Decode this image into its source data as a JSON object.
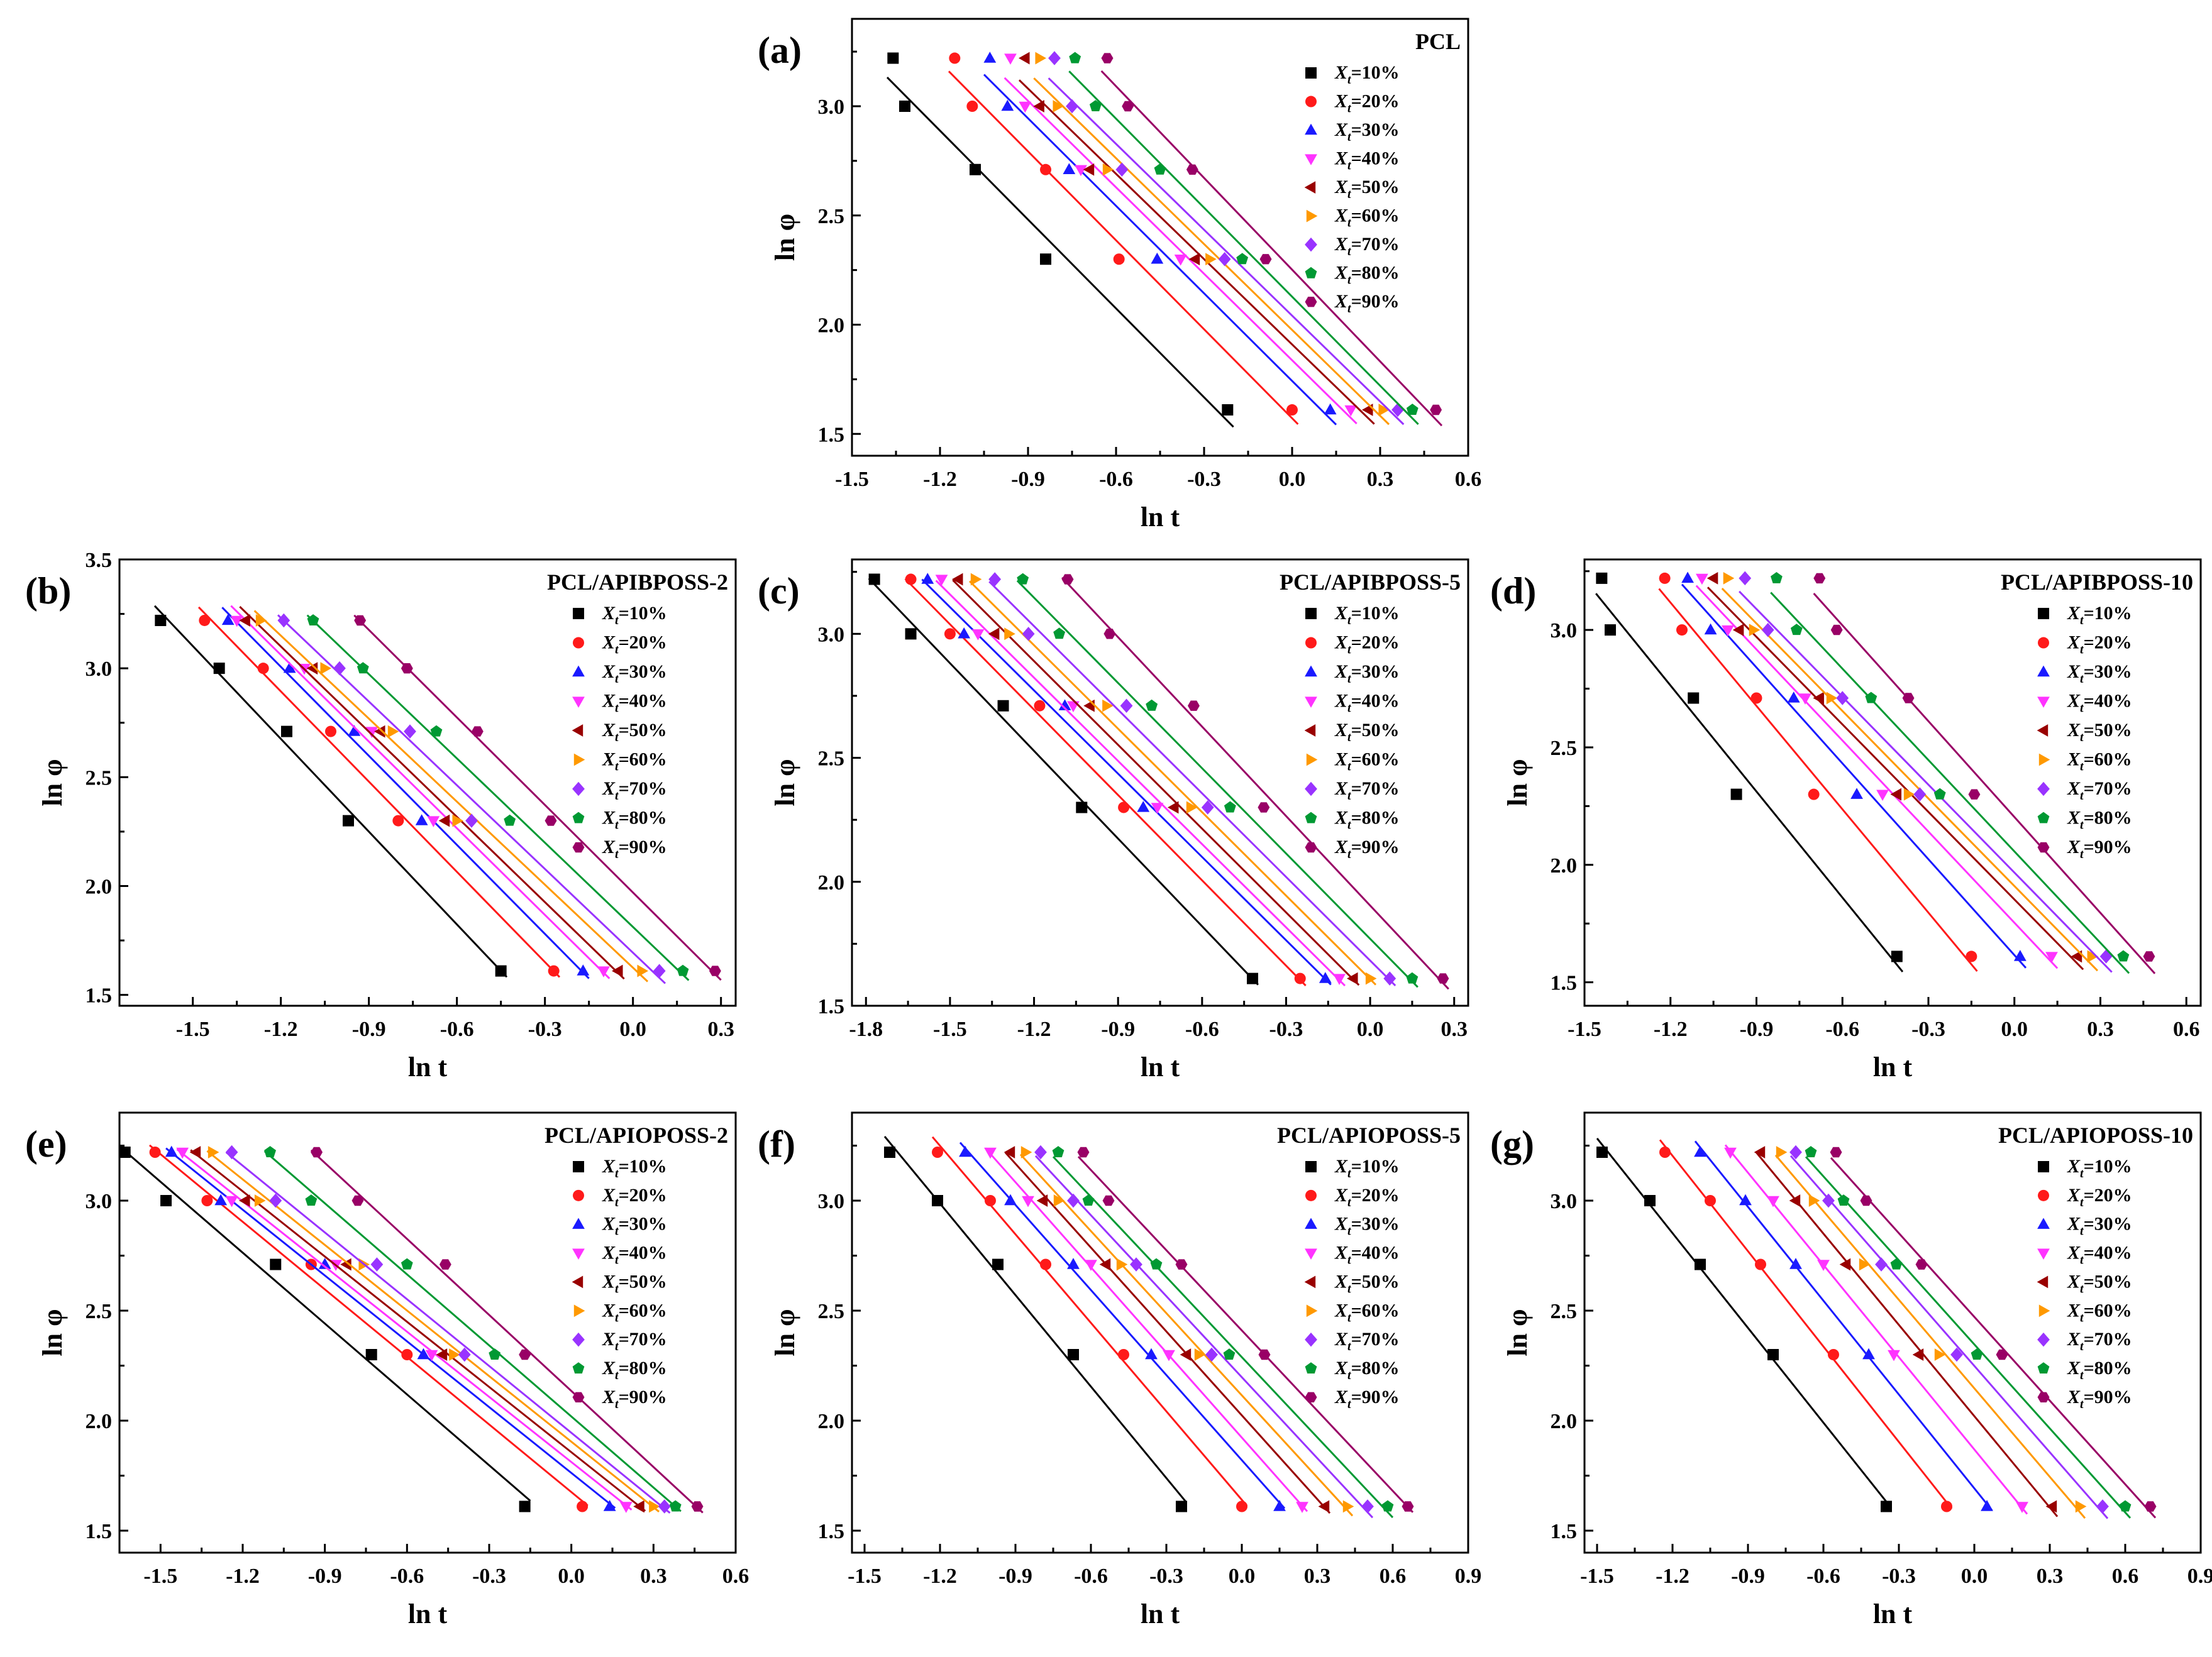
{
  "chart_data": [
    {
      "id": "a",
      "type": "scatter",
      "panel_label": "(a)",
      "title": "PCL",
      "xlabel": "ln t",
      "ylabel": "ln φ",
      "xlim": [
        -1.5,
        0.6
      ],
      "ylim": [
        1.4,
        3.4
      ],
      "xticks": [
        "-1.5",
        "-1.2",
        "-0.9",
        "-0.6",
        "-0.3",
        "0.0",
        "0.3",
        "0.6"
      ],
      "yticks": [
        "1.5",
        "2.0",
        "2.5",
        "3.0"
      ],
      "y": [
        3.22,
        3.0,
        2.71,
        2.3,
        1.61
      ],
      "series": [
        {
          "name": "Xt=10%",
          "x": [
            -1.36,
            -1.32,
            -1.08,
            -0.84,
            -0.22
          ]
        },
        {
          "name": "Xt=20%",
          "x": [
            -1.15,
            -1.09,
            -0.84,
            -0.59,
            0.0
          ]
        },
        {
          "name": "Xt=30%",
          "x": [
            -1.03,
            -0.97,
            -0.76,
            -0.46,
            0.13
          ]
        },
        {
          "name": "Xt=40%",
          "x": [
            -0.96,
            -0.91,
            -0.72,
            -0.38,
            0.2
          ]
        },
        {
          "name": "Xt=50%",
          "x": [
            -0.91,
            -0.86,
            -0.69,
            -0.33,
            0.26
          ]
        },
        {
          "name": "Xt=60%",
          "x": [
            -0.86,
            -0.8,
            -0.63,
            -0.28,
            0.31
          ]
        },
        {
          "name": "Xt=70%",
          "x": [
            -0.81,
            -0.75,
            -0.58,
            -0.23,
            0.36
          ]
        },
        {
          "name": "Xt=80%",
          "x": [
            -0.74,
            -0.67,
            -0.45,
            -0.17,
            0.41
          ]
        },
        {
          "name": "Xt=90%",
          "x": [
            -0.63,
            -0.56,
            -0.34,
            -0.09,
            0.49
          ]
        }
      ]
    },
    {
      "id": "b",
      "type": "scatter",
      "panel_label": "(b)",
      "title": "PCL/APIBPOSS-2",
      "xlabel": "ln t",
      "ylabel": "ln φ",
      "xlim": [
        -1.75,
        0.35
      ],
      "ylim": [
        1.45,
        3.5
      ],
      "xticks": [
        "-1.5",
        "-1.2",
        "-0.9",
        "-0.6",
        "-0.3",
        "0.0",
        "0.3"
      ],
      "yticks": [
        "1.5",
        "2.0",
        "2.5",
        "3.0",
        "3.5"
      ],
      "y": [
        3.22,
        3.0,
        2.71,
        2.3,
        1.61
      ],
      "series": [
        {
          "name": "Xt=10%",
          "x": [
            -1.61,
            -1.41,
            -1.18,
            -0.97,
            -0.45
          ]
        },
        {
          "name": "Xt=20%",
          "x": [
            -1.46,
            -1.26,
            -1.03,
            -0.8,
            -0.27
          ]
        },
        {
          "name": "Xt=30%",
          "x": [
            -1.38,
            -1.17,
            -0.95,
            -0.72,
            -0.17
          ]
        },
        {
          "name": "Xt=40%",
          "x": [
            -1.35,
            -1.12,
            -0.89,
            -0.68,
            -0.1
          ]
        },
        {
          "name": "Xt=50%",
          "x": [
            -1.32,
            -1.09,
            -0.86,
            -0.64,
            -0.05
          ]
        },
        {
          "name": "Xt=60%",
          "x": [
            -1.27,
            -1.05,
            -0.82,
            -0.6,
            0.03
          ]
        },
        {
          "name": "Xt=70%",
          "x": [
            -1.19,
            -1.0,
            -0.76,
            -0.55,
            0.09
          ]
        },
        {
          "name": "Xt=80%",
          "x": [
            -1.09,
            -0.92,
            -0.67,
            -0.42,
            0.17
          ]
        },
        {
          "name": "Xt=90%",
          "x": [
            -0.93,
            -0.77,
            -0.53,
            -0.28,
            0.28
          ]
        }
      ]
    },
    {
      "id": "c",
      "type": "scatter",
      "panel_label": "(c)",
      "title": "PCL/APIBPOSS-5",
      "xlabel": "ln t",
      "ylabel": "ln φ",
      "xlim": [
        -1.85,
        0.35
      ],
      "ylim": [
        1.5,
        3.3
      ],
      "xticks": [
        "-1.8",
        "-1.5",
        "-1.2",
        "-0.9",
        "-0.6",
        "-0.3",
        "0.0",
        "0.3"
      ],
      "yticks": [
        "1.5",
        "2.0",
        "2.5",
        "3.0"
      ],
      "y": [
        3.22,
        3.0,
        2.71,
        2.3,
        1.61
      ],
      "series": [
        {
          "name": "Xt=10%",
          "x": [
            -1.77,
            -1.64,
            -1.31,
            -1.03,
            -0.42
          ]
        },
        {
          "name": "Xt=20%",
          "x": [
            -1.64,
            -1.5,
            -1.18,
            -0.88,
            -0.25
          ]
        },
        {
          "name": "Xt=30%",
          "x": [
            -1.58,
            -1.45,
            -1.09,
            -0.81,
            -0.16
          ]
        },
        {
          "name": "Xt=40%",
          "x": [
            -1.53,
            -1.4,
            -1.06,
            -0.76,
            -0.11
          ]
        },
        {
          "name": "Xt=50%",
          "x": [
            -1.47,
            -1.34,
            -1.0,
            -0.7,
            -0.06
          ]
        },
        {
          "name": "Xt=60%",
          "x": [
            -1.41,
            -1.29,
            -0.94,
            -0.64,
            0.0
          ]
        },
        {
          "name": "Xt=70%",
          "x": [
            -1.34,
            -1.22,
            -0.87,
            -0.58,
            0.07
          ]
        },
        {
          "name": "Xt=80%",
          "x": [
            -1.24,
            -1.11,
            -0.78,
            -0.5,
            0.15
          ]
        },
        {
          "name": "Xt=90%",
          "x": [
            -1.08,
            -0.93,
            -0.63,
            -0.38,
            0.26
          ]
        }
      ]
    },
    {
      "id": "d",
      "type": "scatter",
      "panel_label": "(d)",
      "title": "PCL/APIBPOSS-10",
      "xlabel": "ln t",
      "ylabel": "ln φ",
      "xlim": [
        -1.5,
        0.65
      ],
      "ylim": [
        1.4,
        3.3
      ],
      "xticks": [
        "-1.5",
        "-1.2",
        "-0.9",
        "-0.6",
        "-0.3",
        "0.0",
        "0.3",
        "0.6"
      ],
      "yticks": [
        "1.5",
        "2.0",
        "2.5",
        "3.0"
      ],
      "y": [
        3.22,
        3.0,
        2.71,
        2.3,
        1.61
      ],
      "series": [
        {
          "name": "Xt=10%",
          "x": [
            -1.44,
            -1.41,
            -1.12,
            -0.97,
            -0.41
          ]
        },
        {
          "name": "Xt=20%",
          "x": [
            -1.22,
            -1.16,
            -0.9,
            -0.7,
            -0.15
          ]
        },
        {
          "name": "Xt=30%",
          "x": [
            -1.14,
            -1.06,
            -0.77,
            -0.55,
            0.02
          ]
        },
        {
          "name": "Xt=40%",
          "x": [
            -1.09,
            -1.0,
            -0.73,
            -0.46,
            0.13
          ]
        },
        {
          "name": "Xt=50%",
          "x": [
            -1.05,
            -0.96,
            -0.68,
            -0.41,
            0.22
          ]
        },
        {
          "name": "Xt=60%",
          "x": [
            -1.0,
            -0.91,
            -0.64,
            -0.37,
            0.27
          ]
        },
        {
          "name": "Xt=70%",
          "x": [
            -0.94,
            -0.86,
            -0.6,
            -0.33,
            0.32
          ]
        },
        {
          "name": "Xt=80%",
          "x": [
            -0.83,
            -0.76,
            -0.5,
            -0.26,
            0.38
          ]
        },
        {
          "name": "Xt=90%",
          "x": [
            -0.68,
            -0.62,
            -0.37,
            -0.14,
            0.47
          ]
        }
      ]
    },
    {
      "id": "e",
      "type": "scatter",
      "panel_label": "(e)",
      "title": "PCL/APIOPOSS-2",
      "xlabel": "ln t",
      "ylabel": "ln φ",
      "xlim": [
        -1.65,
        0.6
      ],
      "ylim": [
        1.4,
        3.4
      ],
      "xticks": [
        "-1.5",
        "-1.2",
        "-0.9",
        "-0.6",
        "-0.3",
        "0.0",
        "0.3",
        "0.6"
      ],
      "yticks": [
        "1.5",
        "2.0",
        "2.5",
        "3.0"
      ],
      "y": [
        3.22,
        3.0,
        2.71,
        2.3,
        1.61
      ],
      "series": [
        {
          "name": "Xt=10%",
          "x": [
            -1.63,
            -1.48,
            -1.08,
            -0.73,
            -0.17
          ]
        },
        {
          "name": "Xt=20%",
          "x": [
            -1.52,
            -1.33,
            -0.95,
            -0.6,
            0.04
          ]
        },
        {
          "name": "Xt=30%",
          "x": [
            -1.46,
            -1.28,
            -0.9,
            -0.54,
            0.14
          ]
        },
        {
          "name": "Xt=40%",
          "x": [
            -1.42,
            -1.24,
            -0.86,
            -0.51,
            0.2
          ]
        },
        {
          "name": "Xt=50%",
          "x": [
            -1.37,
            -1.19,
            -0.82,
            -0.47,
            0.25
          ]
        },
        {
          "name": "Xt=60%",
          "x": [
            -1.31,
            -1.14,
            -0.76,
            -0.43,
            0.3
          ]
        },
        {
          "name": "Xt=70%",
          "x": [
            -1.24,
            -1.08,
            -0.71,
            -0.39,
            0.34
          ]
        },
        {
          "name": "Xt=80%",
          "x": [
            -1.1,
            -0.95,
            -0.6,
            -0.28,
            0.38
          ]
        },
        {
          "name": "Xt=90%",
          "x": [
            -0.93,
            -0.78,
            -0.46,
            -0.17,
            0.46
          ]
        }
      ]
    },
    {
      "id": "f",
      "type": "scatter",
      "panel_label": "(f)",
      "title": "PCL/APIOPOSS-5",
      "xlabel": "ln t",
      "ylabel": "ln φ",
      "xlim": [
        -1.55,
        0.9
      ],
      "ylim": [
        1.4,
        3.4
      ],
      "xticks": [
        "-1.5",
        "-1.2",
        "-0.9",
        "-0.6",
        "-0.3",
        "0.0",
        "0.3",
        "0.6",
        "0.9"
      ],
      "yticks": [
        "1.5",
        "2.0",
        "2.5",
        "3.0"
      ],
      "y": [
        3.22,
        3.0,
        2.71,
        2.3,
        1.61
      ],
      "series": [
        {
          "name": "Xt=10%",
          "x": [
            -1.4,
            -1.21,
            -0.97,
            -0.67,
            -0.24
          ]
        },
        {
          "name": "Xt=20%",
          "x": [
            -1.21,
            -1.0,
            -0.78,
            -0.47,
            0.0
          ]
        },
        {
          "name": "Xt=30%",
          "x": [
            -1.1,
            -0.92,
            -0.67,
            -0.36,
            0.15
          ]
        },
        {
          "name": "Xt=40%",
          "x": [
            -1.0,
            -0.85,
            -0.6,
            -0.29,
            0.24
          ]
        },
        {
          "name": "Xt=50%",
          "x": [
            -0.92,
            -0.79,
            -0.54,
            -0.22,
            0.33
          ]
        },
        {
          "name": "Xt=60%",
          "x": [
            -0.86,
            -0.73,
            -0.48,
            -0.17,
            0.42
          ]
        },
        {
          "name": "Xt=70%",
          "x": [
            -0.8,
            -0.67,
            -0.42,
            -0.12,
            0.5
          ]
        },
        {
          "name": "Xt=80%",
          "x": [
            -0.73,
            -0.61,
            -0.34,
            -0.05,
            0.58
          ]
        },
        {
          "name": "Xt=90%",
          "x": [
            -0.63,
            -0.53,
            -0.24,
            0.09,
            0.66
          ]
        }
      ]
    },
    {
      "id": "g",
      "type": "scatter",
      "panel_label": "(g)",
      "title": "PCL/APIOPOSS-10",
      "xlabel": "ln t",
      "ylabel": "ln φ",
      "xlim": [
        -1.55,
        0.9
      ],
      "ylim": [
        1.4,
        3.4
      ],
      "xticks": [
        "-1.5",
        "-1.2",
        "-0.9",
        "-0.6",
        "-0.3",
        "0.0",
        "0.3",
        "0.6",
        "0.9"
      ],
      "yticks": [
        "1.5",
        "2.0",
        "2.5",
        "3.0"
      ],
      "y": [
        3.22,
        3.0,
        2.71,
        2.3,
        1.61
      ],
      "series": [
        {
          "name": "Xt=10%",
          "x": [
            -1.48,
            -1.29,
            -1.09,
            -0.8,
            -0.35
          ]
        },
        {
          "name": "Xt=20%",
          "x": [
            -1.23,
            -1.05,
            -0.85,
            -0.56,
            -0.11
          ]
        },
        {
          "name": "Xt=30%",
          "x": [
            -1.09,
            -0.91,
            -0.71,
            -0.42,
            0.05
          ]
        },
        {
          "name": "Xt=40%",
          "x": [
            -0.97,
            -0.8,
            -0.6,
            -0.32,
            0.19
          ]
        },
        {
          "name": "Xt=50%",
          "x": [
            -0.85,
            -0.71,
            -0.51,
            -0.22,
            0.31
          ]
        },
        {
          "name": "Xt=60%",
          "x": [
            -0.77,
            -0.64,
            -0.44,
            -0.14,
            0.42
          ]
        },
        {
          "name": "Xt=70%",
          "x": [
            -0.71,
            -0.58,
            -0.37,
            -0.07,
            0.51
          ]
        },
        {
          "name": "Xt=80%",
          "x": [
            -0.65,
            -0.52,
            -0.31,
            0.01,
            0.6
          ]
        },
        {
          "name": "Xt=90%",
          "x": [
            -0.55,
            -0.43,
            -0.21,
            0.11,
            0.7
          ]
        }
      ]
    }
  ],
  "legend": {
    "symbol": "X",
    "subscript": "t",
    "entries": [
      "=10%",
      "=20%",
      "=30%",
      "=40%",
      "=50%",
      "=60%",
      "=70%",
      "=80%",
      "=90%"
    ]
  },
  "series_colors": [
    "#000000",
    "#ff1a1a",
    "#1a1aff",
    "#ff33ff",
    "#990000",
    "#ff9900",
    "#9933ff",
    "#009933",
    "#990066"
  ],
  "series_markers": [
    "square",
    "circle",
    "triangle-up",
    "triangle-down",
    "triangle-left",
    "triangle-right",
    "diamond",
    "pentagon",
    "hexagon"
  ]
}
